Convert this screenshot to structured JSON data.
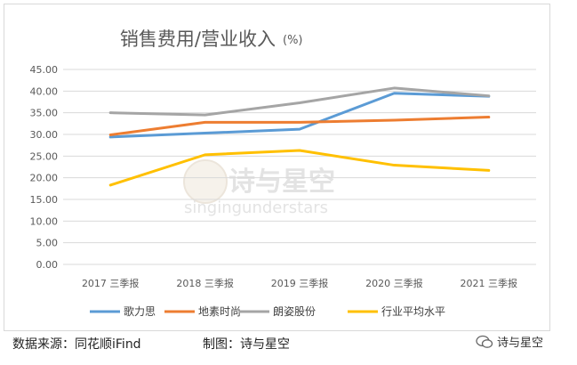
{
  "chart_data": {
    "type": "line",
    "title": "销售费用/营业收入",
    "title_unit": "(%)",
    "categories": [
      "2017 三季报",
      "2018 三季报",
      "2019 三季报",
      "2020 三季报",
      "2021 三季报"
    ],
    "ylim": [
      0,
      45
    ],
    "yticks": [
      "0.00",
      "5.00",
      "10.00",
      "15.00",
      "20.00",
      "25.00",
      "30.00",
      "35.00",
      "40.00",
      "45.00"
    ],
    "grid": true,
    "legend_position": "bottom",
    "series": [
      {
        "name": "歌力思",
        "color": "#5b9bd5",
        "values": [
          29.4,
          30.3,
          31.2,
          39.5,
          38.8
        ]
      },
      {
        "name": "地素时尚",
        "color": "#ed7d31",
        "values": [
          29.9,
          32.8,
          32.8,
          33.3,
          34.0
        ]
      },
      {
        "name": "朗姿股份",
        "color": "#a5a5a5",
        "values": [
          35.0,
          34.5,
          37.3,
          40.7,
          38.9
        ]
      },
      {
        "name": "行业平均水平",
        "color": "#ffc000",
        "values": [
          18.3,
          25.3,
          26.3,
          22.9,
          21.7
        ]
      }
    ]
  },
  "watermark": {
    "text": "诗与星空",
    "subtext": "singingunderstars"
  },
  "footer": {
    "source": "数据来源：同花顺iFind",
    "made_by": "制图：诗与星空",
    "brand": "诗与星空",
    "brand_icon": "wechat-icon"
  }
}
